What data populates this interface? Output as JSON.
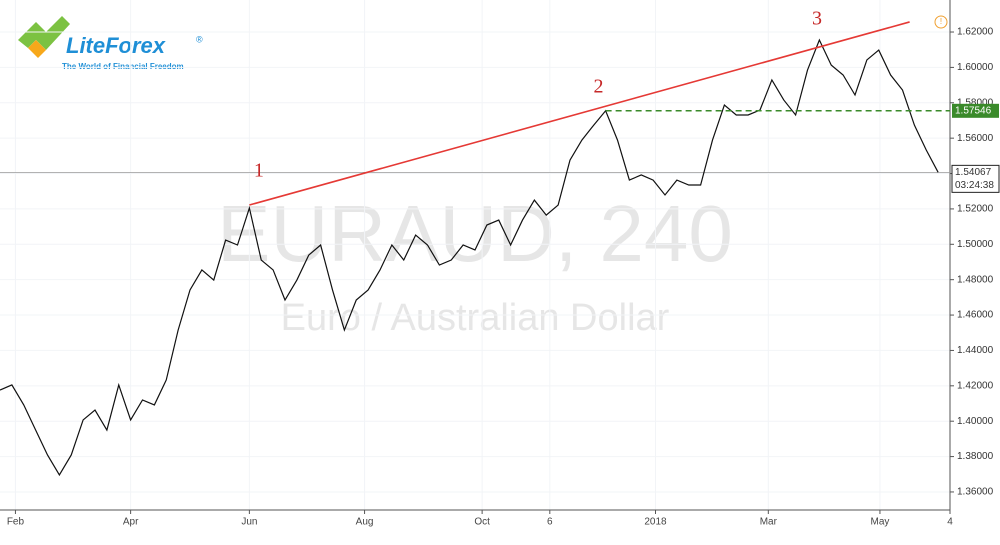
{
  "chart_data": {
    "type": "line",
    "watermark": "EURAUD, 240",
    "watermark_subtitle": "Euro / Australian Dollar",
    "brand": "LiteForex",
    "brand_mark": "®",
    "brand_tagline": "The World of Financial Freedom",
    "xlim": [
      0,
      80
    ],
    "ylim": [
      1.3498,
      1.6381
    ],
    "grid": true,
    "xticks": [
      {
        "value": 1.3,
        "label": "Feb"
      },
      {
        "value": 11,
        "label": "Apr"
      },
      {
        "value": 21,
        "label": "Jun"
      },
      {
        "value": 30.7,
        "label": "Aug"
      },
      {
        "value": 40.6,
        "label": "Oct"
      },
      {
        "value": 46.3,
        "label": "6"
      },
      {
        "value": 55.2,
        "label": "2018"
      },
      {
        "value": 64.7,
        "label": "Mar"
      },
      {
        "value": 74.1,
        "label": "May"
      },
      {
        "value": 80,
        "label": "4"
      }
    ],
    "yticks": [
      {
        "value": 1.36,
        "label": "1.36000"
      },
      {
        "value": 1.38,
        "label": "1.38000"
      },
      {
        "value": 1.4,
        "label": "1.40000"
      },
      {
        "value": 1.42,
        "label": "1.42000"
      },
      {
        "value": 1.44,
        "label": "1.44000"
      },
      {
        "value": 1.46,
        "label": "1.46000"
      },
      {
        "value": 1.48,
        "label": "1.48000"
      },
      {
        "value": 1.5,
        "label": "1.50000"
      },
      {
        "value": 1.52,
        "label": "1.52000"
      },
      {
        "value": 1.54,
        "label": "1.54000"
      },
      {
        "value": 1.56,
        "label": "1.56000"
      },
      {
        "value": 1.58,
        "label": "1.58000"
      },
      {
        "value": 1.6,
        "label": "1.60000"
      },
      {
        "value": 1.62,
        "label": "1.62000"
      }
    ],
    "series": [
      {
        "name": "EURAUD",
        "color": "#111111",
        "x": [
          0,
          1,
          2,
          3,
          4,
          5,
          6,
          7,
          8,
          9,
          10,
          11,
          12,
          13,
          14,
          15,
          16,
          17,
          18,
          19,
          20,
          21,
          22,
          23,
          24,
          25,
          26,
          27,
          28,
          29,
          30,
          31,
          32,
          33,
          34,
          35,
          36,
          37,
          38,
          39,
          40,
          41,
          42,
          43,
          44,
          45,
          46,
          47,
          48,
          49,
          50,
          51,
          52,
          53,
          54,
          55,
          56,
          57,
          58,
          59,
          60,
          61,
          62,
          63,
          64,
          65,
          66,
          67,
          68,
          69,
          70,
          71,
          72,
          73,
          74,
          75,
          76,
          77,
          78,
          79
        ],
        "values": [
          1.4176,
          1.4205,
          1.4092,
          1.395,
          1.3809,
          1.3696,
          1.3809,
          1.4007,
          1.4063,
          1.395,
          1.4205,
          1.4007,
          1.412,
          1.4092,
          1.4233,
          1.4515,
          1.4742,
          1.4855,
          1.4798,
          1.5024,
          1.4996,
          1.5205,
          1.4911,
          1.4855,
          1.4685,
          1.4798,
          1.4939,
          1.4996,
          1.4742,
          1.4515,
          1.4685,
          1.4742,
          1.4855,
          1.4996,
          1.4911,
          1.5052,
          1.4996,
          1.4883,
          1.4911,
          1.4996,
          1.4968,
          1.5109,
          1.5137,
          1.4996,
          1.5137,
          1.525,
          1.5165,
          1.5222,
          1.5476,
          1.5589,
          1.5674,
          1.5755,
          1.5589,
          1.5363,
          1.5392,
          1.5363,
          1.5279,
          1.5363,
          1.5335,
          1.5335,
          1.5589,
          1.5787,
          1.5731,
          1.5731,
          1.5759,
          1.5929,
          1.5816,
          1.5731,
          1.5985,
          1.6155,
          1.6013,
          1.5957,
          1.5844,
          1.6042,
          1.6098,
          1.5957,
          1.5872,
          1.5674,
          1.5533,
          1.5407
        ]
      }
    ],
    "trendline": {
      "color": "#e53935",
      "x": [
        21,
        76.6
      ],
      "values": [
        1.5222,
        1.6257
      ]
    },
    "level": {
      "color": "#3a8a2a",
      "x": 51,
      "value": 1.57546,
      "label": "1.57546"
    },
    "last_price": {
      "value": 1.54067,
      "label": "1.54067",
      "countdown": "03:24:38"
    },
    "annotations": [
      {
        "text": "1",
        "x": 21.8,
        "y": 1.5409
      },
      {
        "text": "2",
        "x": 50.4,
        "y": 1.5883
      },
      {
        "text": "3",
        "x": 68.8,
        "y": 1.6268
      }
    ]
  }
}
